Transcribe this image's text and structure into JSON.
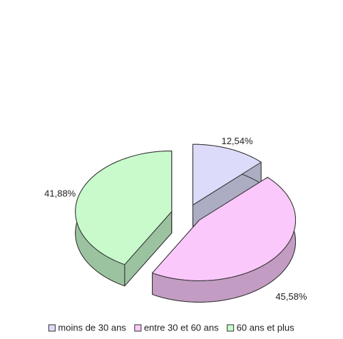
{
  "chart_data": {
    "type": "pie3d",
    "categories": [
      "moins de 30 ans",
      "entre 30 et 60 ans",
      "60 ans et plus"
    ],
    "values": [
      12.54,
      45.58,
      41.88
    ],
    "value_labels": [
      "12,54%",
      "45,58%",
      "41,88%"
    ],
    "colors": [
      "#dcdcfa",
      "#fac8fa",
      "#c8facc"
    ],
    "legend": "bottom"
  }
}
